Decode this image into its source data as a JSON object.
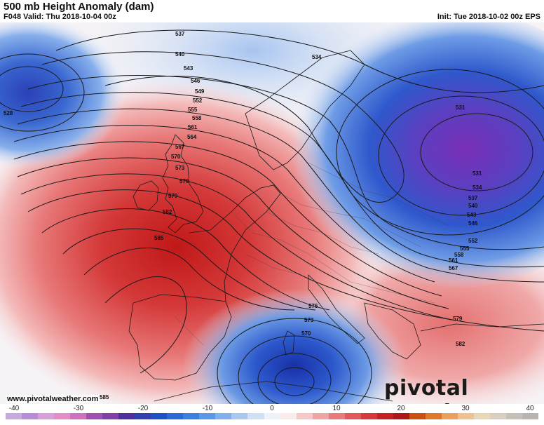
{
  "header": {
    "title": "500 mb Height Anomaly (dam)",
    "valid": "F048 Valid: Thu 2018-10-04 00z",
    "init": "Init: Tue 2018-10-02 00z EPS"
  },
  "contour_labels": [
    "537",
    "540",
    "543",
    "546",
    "549",
    "552",
    "555",
    "558",
    "561",
    "564",
    "567",
    "570",
    "573",
    "576",
    "579",
    "582",
    "585",
    "528",
    "534",
    "531",
    "531",
    "534",
    "537",
    "540",
    "543",
    "546",
    "552",
    "555",
    "558",
    "561",
    "567",
    "576",
    "573",
    "570",
    "579",
    "582",
    "585"
  ],
  "footer": {
    "website": "www.pivotalweather.com",
    "brand": "pivotal weather"
  },
  "colorbar": {
    "ticks": [
      "-40",
      "-30",
      "-20",
      "-10",
      "0",
      "10",
      "20",
      "30",
      "40"
    ],
    "colors": [
      "#c8a8e0",
      "#b88cd8",
      "#d8a0d8",
      "#e48cc8",
      "#d070c0",
      "#a050b0",
      "#8040a8",
      "#5030a0",
      "#3040b0",
      "#2050c8",
      "#2a6ad8",
      "#3a80e0",
      "#5a98e8",
      "#80b0ee",
      "#a8c8f2",
      "#d0e0f6",
      "#eef2fa",
      "#fbecec",
      "#f6c8c8",
      "#f0a4a4",
      "#e87c7c",
      "#e05858",
      "#d83838",
      "#c82020",
      "#b01818",
      "#cc5010",
      "#e07828",
      "#eca060",
      "#f2c090",
      "#e8d8b8",
      "#d8cfc0",
      "#c8c0b8",
      "#b8b4b0"
    ]
  }
}
